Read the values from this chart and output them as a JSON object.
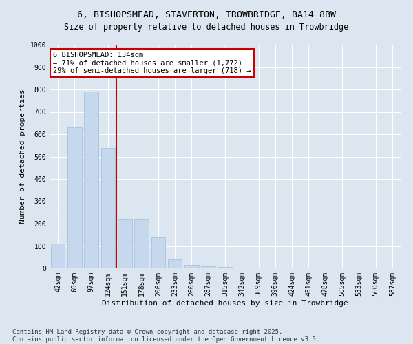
{
  "title": "6, BISHOPSMEAD, STAVERTON, TROWBRIDGE, BA14 8BW",
  "subtitle": "Size of property relative to detached houses in Trowbridge",
  "xlabel": "Distribution of detached houses by size in Trowbridge",
  "ylabel": "Number of detached properties",
  "categories": [
    "42sqm",
    "69sqm",
    "97sqm",
    "124sqm",
    "151sqm",
    "178sqm",
    "206sqm",
    "233sqm",
    "260sqm",
    "287sqm",
    "315sqm",
    "342sqm",
    "369sqm",
    "396sqm",
    "424sqm",
    "451sqm",
    "478sqm",
    "505sqm",
    "533sqm",
    "560sqm",
    "587sqm"
  ],
  "values": [
    110,
    630,
    790,
    540,
    220,
    220,
    140,
    40,
    15,
    10,
    5,
    0,
    0,
    0,
    0,
    0,
    0,
    0,
    0,
    0,
    0
  ],
  "bar_color": "#c5d8ed",
  "bar_edge_color": "#a0bcd8",
  "vline_color": "#cc0000",
  "annotation_text": "6 BISHOPSMEAD: 134sqm\n← 71% of detached houses are smaller (1,772)\n29% of semi-detached houses are larger (718) →",
  "annotation_box_color": "#ffffff",
  "annotation_box_edge_color": "#cc0000",
  "ylim": [
    0,
    1000
  ],
  "yticks": [
    0,
    100,
    200,
    300,
    400,
    500,
    600,
    700,
    800,
    900,
    1000
  ],
  "background_color": "#dce6f0",
  "plot_bg_color": "#dce6f0",
  "footer_line1": "Contains HM Land Registry data © Crown copyright and database right 2025.",
  "footer_line2": "Contains public sector information licensed under the Open Government Licence v3.0.",
  "title_fontsize": 9.5,
  "subtitle_fontsize": 8.5,
  "xlabel_fontsize": 8,
  "ylabel_fontsize": 8,
  "tick_fontsize": 7,
  "footer_fontsize": 6.5,
  "annotation_fontsize": 7.5
}
